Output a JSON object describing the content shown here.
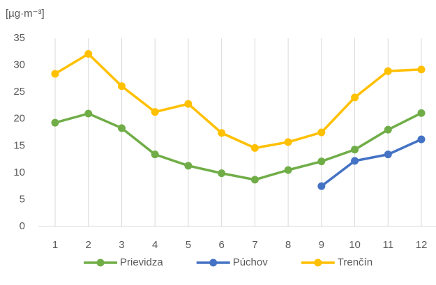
{
  "chart_data": {
    "type": "line",
    "y_label": "[µg·m⁻³]",
    "categories": [
      "1",
      "2",
      "3",
      "4",
      "5",
      "6",
      "7",
      "8",
      "9",
      "10",
      "11",
      "12"
    ],
    "series": [
      {
        "name": "Prievidza",
        "color": "#70ad47",
        "values": [
          19.3,
          21.0,
          18.3,
          13.4,
          11.3,
          9.9,
          8.7,
          10.5,
          12.1,
          14.3,
          18.0,
          21.1
        ]
      },
      {
        "name": "Púchov",
        "color": "#4472c4",
        "values": [
          null,
          null,
          null,
          null,
          null,
          null,
          null,
          null,
          7.5,
          12.2,
          13.4,
          16.2
        ]
      },
      {
        "name": "Trenčín",
        "color": "#ffc000",
        "values": [
          28.4,
          32.1,
          26.1,
          21.3,
          22.8,
          17.4,
          14.6,
          15.7,
          17.5,
          24.0,
          28.9,
          29.2
        ]
      }
    ],
    "ylim": [
      0,
      35
    ],
    "yticks": [
      0,
      5,
      10,
      15,
      20,
      25,
      30,
      35
    ],
    "grid": true,
    "legend": "bottom"
  }
}
